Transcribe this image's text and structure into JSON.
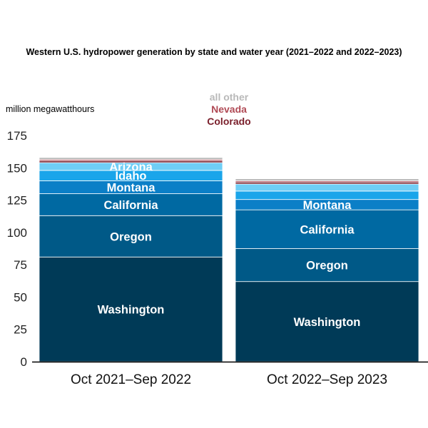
{
  "chart_data": {
    "type": "bar",
    "stacked": true,
    "title": "Western U.S. hydropower generation by state and water year (2021–2022 and 2022–2023)",
    "ylabel": "million megawatthours",
    "ylim": [
      0,
      175
    ],
    "yticks": [
      0,
      25,
      50,
      75,
      100,
      125,
      150,
      175
    ],
    "grid": false,
    "categories": [
      "Oct 2021–Sep 2022",
      "Oct 2022–Sep 2023"
    ],
    "legend": [
      "all other",
      "Nevada",
      "Colorado"
    ],
    "series": [
      {
        "name": "Washington",
        "values": [
          81,
          62
        ],
        "color": "#003a57",
        "show_label": [
          true,
          true
        ]
      },
      {
        "name": "Oregon",
        "values": [
          32,
          25.5
        ],
        "color": "#005987",
        "show_label": [
          true,
          true
        ]
      },
      {
        "name": "California",
        "values": [
          17,
          30
        ],
        "color": "#0069a2",
        "show_label": [
          true,
          true
        ]
      },
      {
        "name": "Montana",
        "values": [
          10,
          8
        ],
        "color": "#0b7fc7",
        "show_label": [
          true,
          true
        ]
      },
      {
        "name": "Idaho",
        "values": [
          8,
          6.5
        ],
        "color": "#1aa5ea",
        "show_label": [
          true,
          false
        ]
      },
      {
        "name": "Arizona",
        "values": [
          6,
          5.5
        ],
        "color": "#6fcef6",
        "show_label": [
          true,
          false
        ]
      },
      {
        "name": "Colorado",
        "values": [
          1.5,
          1.5
        ],
        "color": "#7a1f2b",
        "show_label": [
          false,
          false
        ]
      },
      {
        "name": "Nevada",
        "values": [
          1,
          1
        ],
        "color": "#b04a55",
        "show_label": [
          false,
          false
        ]
      },
      {
        "name": "all other",
        "values": [
          1.5,
          1.5
        ],
        "color": "#b9b9b9",
        "show_label": [
          false,
          false
        ]
      }
    ]
  }
}
